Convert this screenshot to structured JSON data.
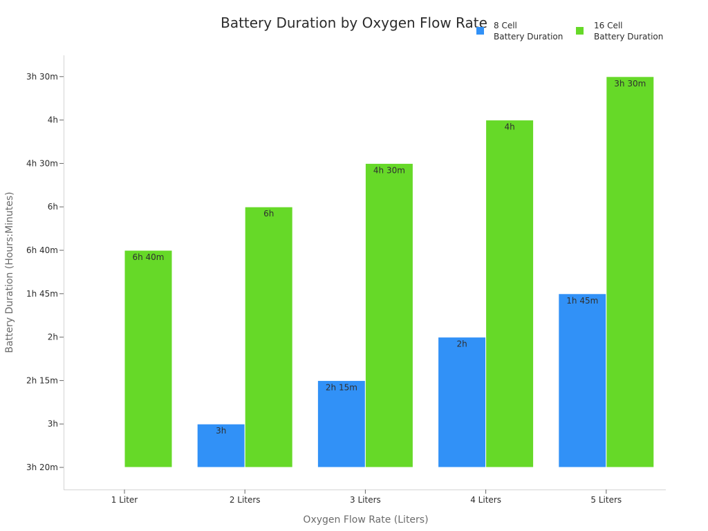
{
  "chart_data": {
    "type": "bar",
    "title": "Battery Duration by Oxygen Flow Rate",
    "xlabel": "Oxygen Flow Rate (Liters)",
    "ylabel": "Battery Duration (Hours:Minutes)",
    "categories": [
      "1 Liter",
      "2 Liters",
      "3 Liters",
      "4 Liters",
      "5 Liters"
    ],
    "y_tick_labels": [
      "3h 20m",
      "3h",
      "2h 15m",
      "2h",
      "1h 45m",
      "6h 40m",
      "6h",
      "4h 30m",
      "4h",
      "3h 30m"
    ],
    "legend_position": "top-right",
    "grid": false,
    "series": [
      {
        "name": "8 Cell Battery Duration",
        "legend_lines": [
          "8 Cell",
          "Battery Duration"
        ],
        "color": "#3191f7",
        "levels": [
          null,
          1,
          2,
          3,
          4
        ],
        "labels": [
          null,
          "3h",
          "2h 15m",
          "2h",
          "1h 45m"
        ]
      },
      {
        "name": "16 Cell Battery Duration",
        "legend_lines": [
          "16 Cell",
          "Battery Duration"
        ],
        "color": "#66d928",
        "levels": [
          5,
          6,
          7,
          8,
          9
        ],
        "labels": [
          "6h 40m",
          "6h",
          "4h 30m",
          "4h",
          "3h 30m"
        ]
      }
    ]
  }
}
